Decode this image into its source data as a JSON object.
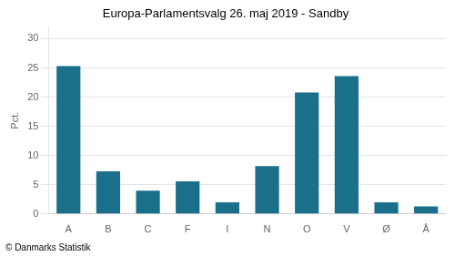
{
  "chart_data": {
    "type": "bar",
    "title": "Europa-Parlamentsvalg 26. maj 2019 - Sandby",
    "categories": [
      "A",
      "B",
      "C",
      "F",
      "I",
      "N",
      "O",
      "V",
      "Ø",
      "Å"
    ],
    "values": [
      25.3,
      7.3,
      4.0,
      5.6,
      2.0,
      8.2,
      20.8,
      23.6,
      2.0,
      1.3
    ],
    "color": "#1a6f8a",
    "ylabel": "Pct.",
    "footer": "© Danmarks Statistik",
    "ylim": [
      0,
      32
    ],
    "yticks": [
      0,
      5,
      10,
      15,
      20,
      25,
      30
    ],
    "grid": true
  }
}
